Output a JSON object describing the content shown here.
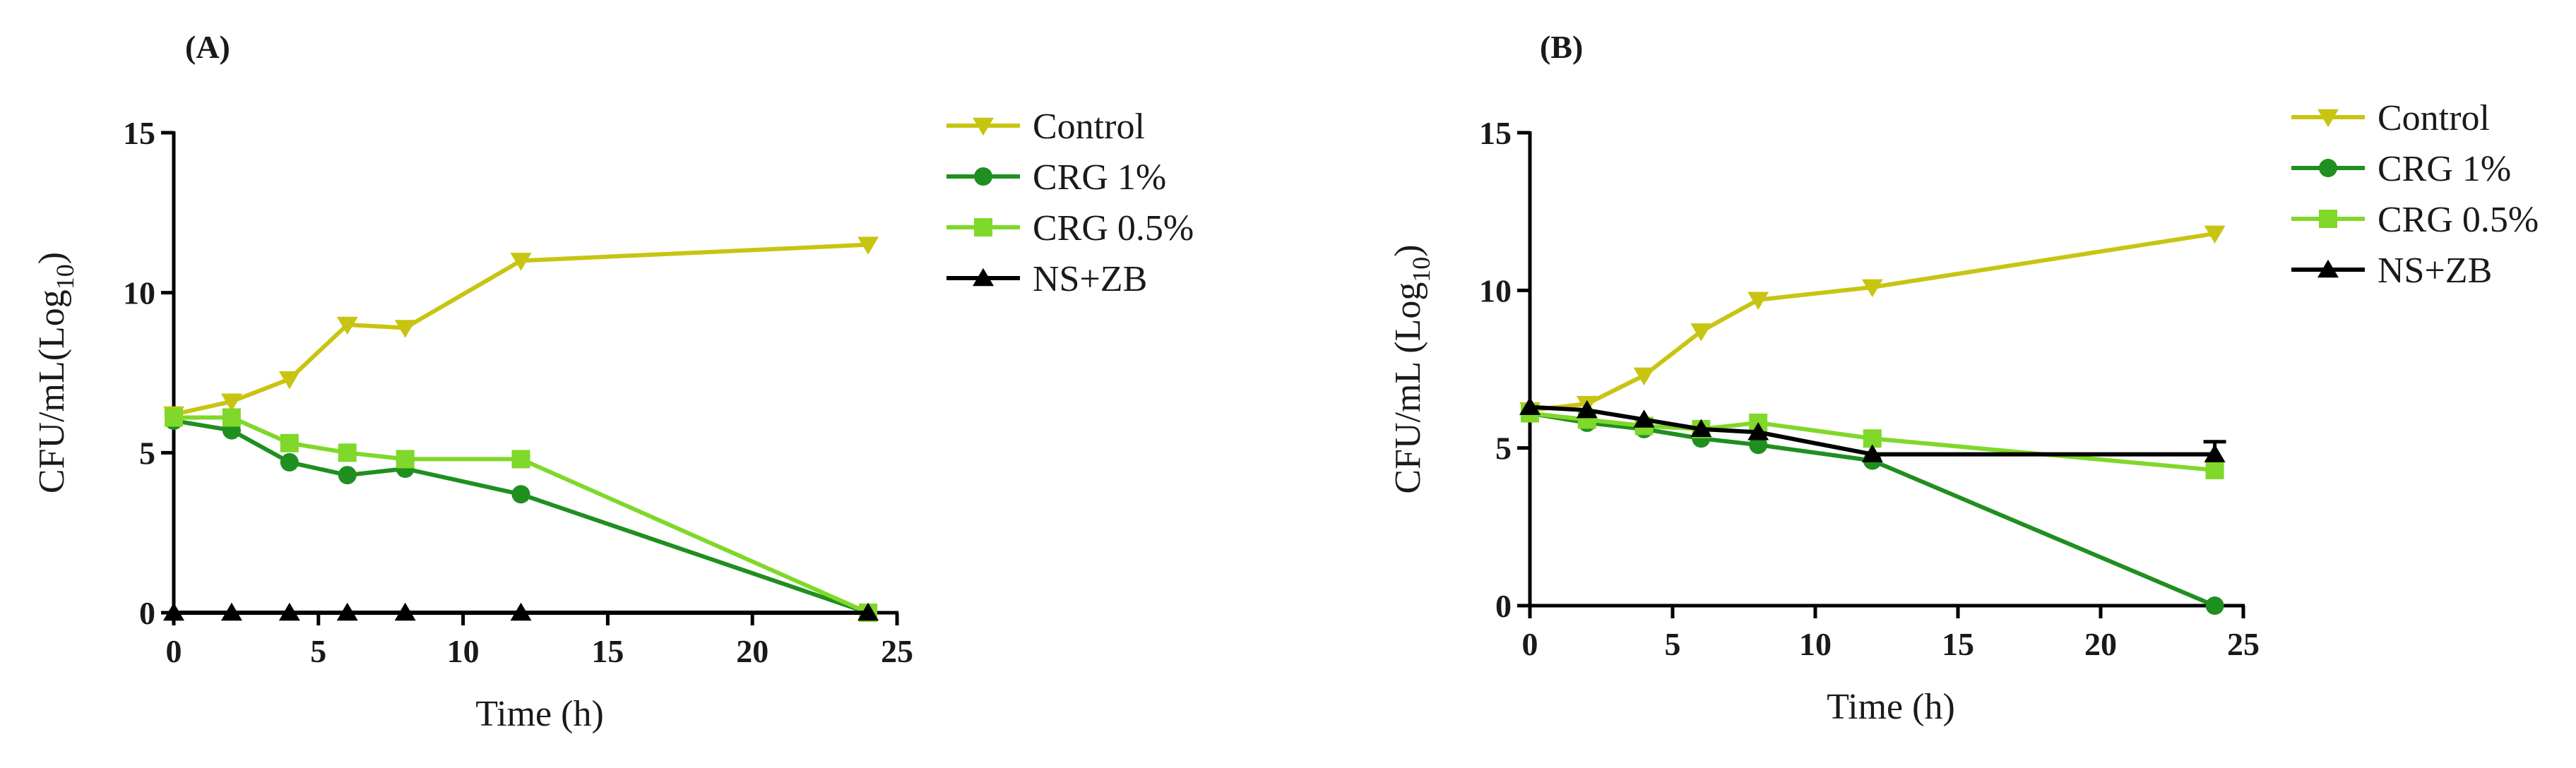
{
  "colors": {
    "control": "#c8c412",
    "crg1": "#1f8f1f",
    "crg05": "#7fd82a",
    "nszb": "#000000",
    "axis": "#000000"
  },
  "chart_data": [
    {
      "panel": "(A)",
      "type": "line",
      "xlabel": "Time (h)",
      "ylabel": "CFU/mL(Log",
      "ylabel_sub": "10",
      "ylabel_close": ")",
      "xlim": [
        0,
        25
      ],
      "ylim": [
        0,
        15
      ],
      "xticks": [
        0,
        5,
        10,
        15,
        20,
        25
      ],
      "yticks": [
        0,
        5,
        10,
        15
      ],
      "legend_position": "right",
      "series": [
        {
          "name": "Control",
          "marker": "triangle-down",
          "color_key": "control",
          "x": [
            0,
            2,
            4,
            6,
            8,
            12,
            24
          ],
          "y": [
            6.2,
            6.6,
            7.3,
            9.0,
            8.9,
            11.0,
            11.5
          ]
        },
        {
          "name": "CRG 1%",
          "marker": "circle",
          "color_key": "crg1",
          "x": [
            0,
            2,
            4,
            6,
            8,
            12,
            24
          ],
          "y": [
            6.0,
            5.7,
            4.7,
            4.3,
            4.5,
            3.7,
            0.0
          ]
        },
        {
          "name": "CRG 0.5%",
          "marker": "square",
          "color_key": "crg05",
          "x": [
            0,
            2,
            4,
            6,
            8,
            12,
            24
          ],
          "y": [
            6.1,
            6.1,
            5.3,
            5.0,
            4.8,
            4.8,
            0.0
          ]
        },
        {
          "name": "NS+ZB",
          "marker": "triangle-up",
          "color_key": "nszb",
          "x": [
            0,
            2,
            4,
            6,
            8,
            12,
            24
          ],
          "y": [
            0,
            0,
            0,
            0,
            0,
            0,
            0
          ]
        }
      ]
    },
    {
      "panel": "(B)",
      "type": "line",
      "xlabel": "Time (h)",
      "ylabel": "CFU/mL (Log",
      "ylabel_sub": "10",
      "ylabel_close": ")",
      "xlim": [
        0,
        25
      ],
      "ylim": [
        0,
        15
      ],
      "xticks": [
        0,
        5,
        10,
        15,
        20,
        25
      ],
      "yticks": [
        0,
        5,
        10,
        15
      ],
      "legend_position": "right",
      "series": [
        {
          "name": "Control",
          "marker": "triangle-down",
          "color_key": "control",
          "x": [
            0,
            2,
            4,
            6,
            8,
            12,
            24
          ],
          "y": [
            6.2,
            6.4,
            7.3,
            8.7,
            9.7,
            10.1,
            11.8
          ]
        },
        {
          "name": "CRG 1%",
          "marker": "circle",
          "color_key": "crg1",
          "x": [
            0,
            2,
            4,
            6,
            8,
            12,
            24
          ],
          "y": [
            6.1,
            5.8,
            5.6,
            5.3,
            5.1,
            4.6,
            0.0
          ]
        },
        {
          "name": "CRG 0.5%",
          "marker": "square",
          "color_key": "crg05",
          "x": [
            0,
            2,
            4,
            6,
            8,
            12,
            24
          ],
          "y": [
            6.1,
            5.9,
            5.7,
            5.6,
            5.8,
            5.3,
            4.3
          ]
        },
        {
          "name": "NS+ZB",
          "marker": "triangle-up",
          "color_key": "nszb",
          "x": [
            0,
            2,
            4,
            6,
            8,
            12,
            24
          ],
          "y": [
            6.3,
            6.2,
            5.9,
            5.6,
            5.5,
            4.8,
            4.8
          ],
          "error_at_last": 0.4
        }
      ]
    }
  ]
}
